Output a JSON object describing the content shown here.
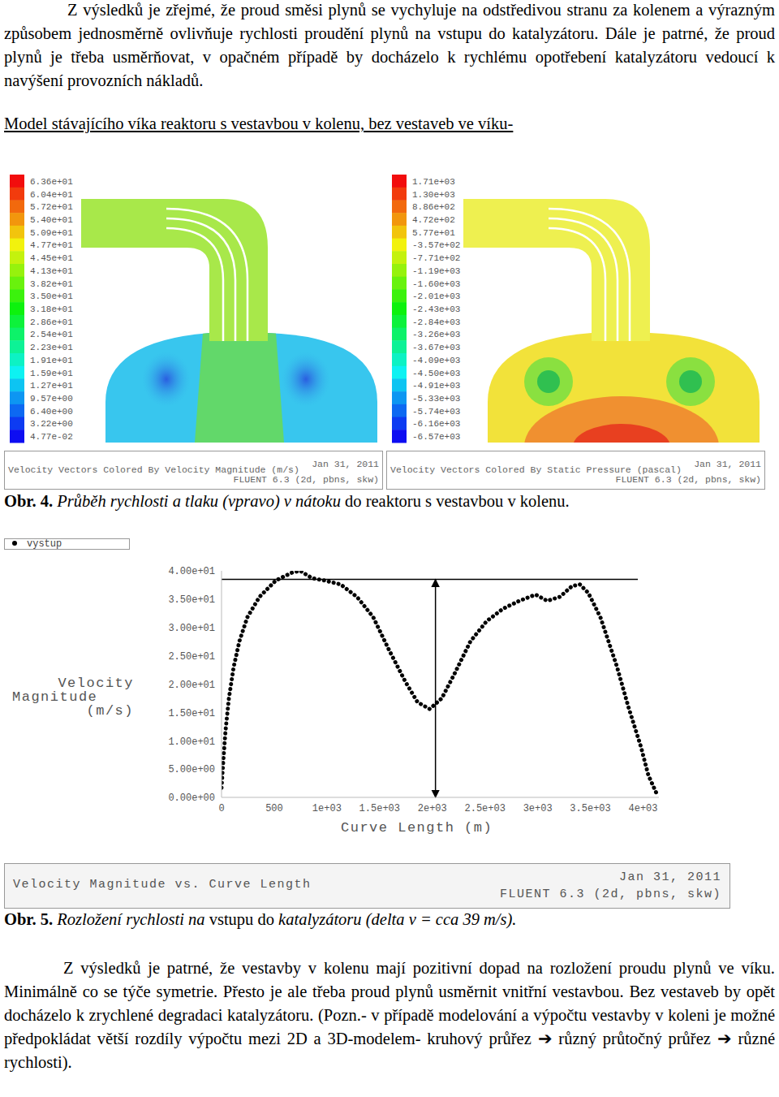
{
  "paragraph_1": "Z výsledků je zřejmé, že proud směsi plynů se vychyluje na odstředivou stranu za kolenem a výrazným způsobem jednosměrně ovlivňuje rychlosti proudění plynů na vstupu do katalyzátoru. Dále je patrné, že proud plynů je třeba usměrňovat, v opačném případě by docházelo k rychlému opotřebení katalyzátoru vedoucí k navýšení provozních nákladů.",
  "heading": "Model stávajícího víka reaktoru s vestavbou v kolenu, bez vestaveb ve víku-",
  "figure_4": {
    "panels": [
      {
        "colorbar_labels": [
          "6.36e+01",
          "6.04e+01",
          "5.72e+01",
          "5.40e+01",
          "5.09e+01",
          "4.77e+01",
          "4.45e+01",
          "4.13e+01",
          "3.82e+01",
          "3.50e+01",
          "3.18e+01",
          "2.86e+01",
          "2.54e+01",
          "2.23e+01",
          "1.91e+01",
          "1.59e+01",
          "1.27e+01",
          "9.57e+00",
          "6.40e+00",
          "3.22e+00",
          "4.77e-02"
        ],
        "footer": "Velocity Vectors Colored By Velocity Magnitude (m/s)",
        "date": "Jan 31, 2011",
        "solver": "FLUENT 6.3 (2d, pbns, skw)"
      },
      {
        "colorbar_labels": [
          "1.71e+03",
          "1.30e+03",
          "8.86e+02",
          "4.72e+02",
          "5.77e+01",
          "-3.57e+02",
          "-7.71e+02",
          "-1.19e+03",
          "-1.60e+03",
          "-2.01e+03",
          "-2.43e+03",
          "-2.84e+03",
          "-3.26e+03",
          "-3.67e+03",
          "-4.09e+03",
          "-4.50e+03",
          "-4.91e+03",
          "-5.33e+03",
          "-5.74e+03",
          "-6.16e+03",
          "-6.57e+03"
        ],
        "footer": "Velocity Vectors Colored By Static Pressure (pascal)",
        "date": "Jan 31, 2011",
        "solver": "FLUENT 6.3 (2d, pbns, skw)"
      }
    ],
    "caption": {
      "label": "Obr. 4.",
      "italic": "Průběh rychlosti a tlaku (vpravo) v nátoku",
      "normal": " do reaktoru s vestavbou v kolenu."
    }
  },
  "chart_data": {
    "type": "line",
    "x_label": "Curve Length (m)",
    "y_label": "Velocity Magnitude (m/s)",
    "legend": "top-left",
    "series": [
      {
        "name": "vystup",
        "color": "#000000",
        "line_style": "dotted",
        "x": [
          0,
          15,
          38,
          70,
          115,
          170,
          245,
          360,
          515,
          670,
          745,
          860,
          975,
          1130,
          1285,
          1440,
          1590,
          1745,
          1860,
          1975,
          2090,
          2210,
          2360,
          2515,
          2670,
          2825,
          2980,
          3090,
          3210,
          3325,
          3400,
          3480,
          3595,
          3750,
          3860,
          3980,
          4050,
          4130
        ],
        "values": [
          1.7,
          6,
          11.8,
          17.5,
          23,
          27.6,
          31.8,
          35.4,
          38.3,
          39.7,
          40,
          38.7,
          38.3,
          37.6,
          35.4,
          31.8,
          26,
          20.4,
          16.8,
          15.6,
          17.5,
          21.8,
          27.5,
          31.1,
          33.3,
          34.7,
          35.8,
          34.7,
          35.4,
          37.3,
          37.6,
          36.1,
          31.8,
          23.2,
          16,
          8.9,
          3.9,
          0.6
        ]
      }
    ],
    "xlim": [
      0,
      4150
    ],
    "xticks": [
      0,
      500,
      {
        "value": 1000,
        "label": "1e+03"
      },
      {
        "value": 1500,
        "label": "1.5e+03"
      },
      {
        "value": 2000,
        "label": "2e+03"
      },
      {
        "value": 2500,
        "label": "2.5e+03"
      },
      {
        "value": 3000,
        "label": "3e+03"
      },
      {
        "value": 3500,
        "label": "3.5e+03"
      },
      {
        "value": 4000,
        "label": "4e+03"
      }
    ],
    "ylim": [
      0,
      40
    ],
    "yticks": [
      {
        "value": 0,
        "label": "0.00e+00"
      },
      {
        "value": 5,
        "label": "5.00e+00"
      },
      {
        "value": 10,
        "label": "1.00e+01"
      },
      {
        "value": 15,
        "label": "1.50e+01"
      },
      {
        "value": 20,
        "label": "2.00e+01"
      },
      {
        "value": 25,
        "label": "2.50e+01"
      },
      {
        "value": 30,
        "label": "3.00e+01"
      },
      {
        "value": 35,
        "label": "3.50e+01"
      },
      {
        "value": 40,
        "label": "4.00e+01"
      }
    ],
    "annotations": [
      {
        "type": "hline",
        "y": 38.5,
        "x": [
          0,
          3950
        ]
      },
      {
        "type": "arrow",
        "x": 2030,
        "y": [
          0,
          38.5
        ]
      }
    ]
  },
  "figure_5": {
    "footer": {
      "title": "Velocity Magnitude vs. Curve Length",
      "date": "Jan 31, 2011",
      "solver": "FLUENT 6.3 (2d, pbns, skw)"
    },
    "caption": {
      "label": "Obr. 5.",
      "italic": "Rozložení rychlosti na",
      "normal": " vstupu do ",
      "italic_2": "katalyzátoru (delta v = cca 39 m/s)."
    }
  },
  "paragraph_2": "Z výsledků je patrné, že vestavby v kolenu mají pozitivní dopad na rozložení proudu plynů ve víku. Minimálně co se týče symetrie. Přesto je ale třeba proud plynů usměrnit vnitřní vestavbou. Bez vestaveb by opět docházelo k zrychlené degradaci katalyzátoru. (Pozn.- v případě modelování a výpočtu vestavby v koleni je možné předpokládat větší rozdíly výpočtu mezi 2D a 3D-modelem- kruhový průřez ➔ různý průtočný průřez ➔ různé rychlosti)."
}
